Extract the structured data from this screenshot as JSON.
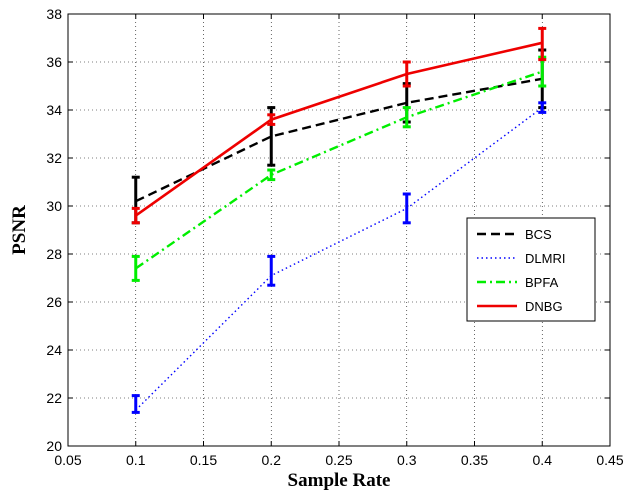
{
  "chart_data": {
    "type": "line",
    "title": "",
    "xlabel": "Sample Rate",
    "ylabel": "PSNR",
    "xlim": [
      0.05,
      0.45
    ],
    "ylim": [
      20,
      38
    ],
    "xticks": [
      "0.05",
      "0.1",
      "0.15",
      "0.2",
      "0.25",
      "0.3",
      "0.35",
      "0.4",
      "0.45"
    ],
    "yticks": [
      "20",
      "22",
      "24",
      "26",
      "28",
      "30",
      "32",
      "34",
      "36",
      "38"
    ],
    "grid": true,
    "legend_position": "right",
    "x": [
      0.1,
      0.2,
      0.3,
      0.4
    ],
    "series": [
      {
        "name": "BCS",
        "color": "#000000",
        "style": "dashed",
        "values": [
          30.2,
          32.9,
          34.3,
          35.3
        ],
        "err_low": [
          29.3,
          31.7,
          33.5,
          34.1
        ],
        "err_high": [
          31.2,
          34.1,
          35.1,
          36.5
        ]
      },
      {
        "name": "DLMRI",
        "color": "#0000ff",
        "style": "dotted",
        "values": [
          21.5,
          27.1,
          29.9,
          34.1
        ],
        "err_low": [
          21.4,
          26.7,
          29.3,
          33.9
        ],
        "err_high": [
          22.1,
          27.9,
          30.5,
          34.3
        ]
      },
      {
        "name": "BPFA",
        "color": "#00ee00",
        "style": "dashdot",
        "values": [
          27.4,
          31.3,
          33.7,
          35.6
        ],
        "err_low": [
          26.9,
          31.1,
          33.3,
          35.0
        ],
        "err_high": [
          27.9,
          31.5,
          34.1,
          36.2
        ]
      },
      {
        "name": "DNBG",
        "color": "#ee0000",
        "style": "solid",
        "values": [
          29.6,
          33.6,
          35.5,
          36.8
        ],
        "err_low": [
          29.3,
          33.4,
          35.0,
          36.1
        ],
        "err_high": [
          29.9,
          33.8,
          36.0,
          37.4
        ]
      }
    ]
  }
}
